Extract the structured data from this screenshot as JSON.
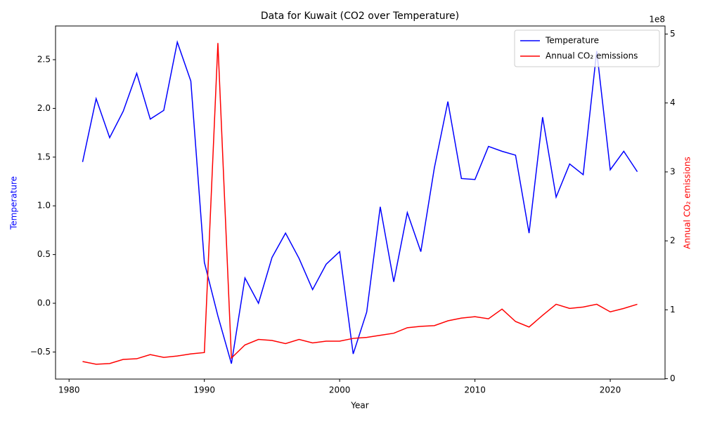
{
  "chart_data": {
    "type": "line",
    "title": "Data for Kuwait (CO2 over Temperature)",
    "xlabel": "Year",
    "ylabel": "Temperature",
    "y2label": "Annual CO₂ emissions",
    "y2_offset_label": "1e8",
    "x": [
      1981,
      1982,
      1983,
      1984,
      1985,
      1986,
      1987,
      1988,
      1989,
      1990,
      1991,
      1992,
      1993,
      1994,
      1995,
      1996,
      1997,
      1998,
      1999,
      2000,
      2001,
      2002,
      2003,
      2004,
      2005,
      2006,
      2007,
      2008,
      2009,
      2010,
      2011,
      2012,
      2013,
      2014,
      2015,
      2016,
      2017,
      2018,
      2019,
      2020,
      2021,
      2022
    ],
    "series": [
      {
        "name": "Temperature",
        "color": "#0000ff",
        "axis": "y",
        "values": [
          1.45,
          2.1,
          1.7,
          1.97,
          2.36,
          1.89,
          1.98,
          2.68,
          2.28,
          0.42,
          -0.13,
          -0.62,
          0.26,
          0.0,
          0.47,
          0.72,
          0.46,
          0.14,
          0.4,
          0.53,
          -0.52,
          -0.09,
          0.99,
          0.22,
          0.93,
          0.53,
          1.39,
          2.07,
          1.28,
          1.27,
          1.61,
          1.56,
          1.52,
          0.72,
          1.91,
          1.09,
          1.43,
          1.32,
          2.59,
          1.37,
          1.56,
          1.35
        ]
      },
      {
        "name": "Annual CO₂ emissions",
        "color": "#ff0000",
        "axis": "y2",
        "values": [
          25000000,
          21000000,
          22000000,
          28000000,
          29000000,
          35000000,
          31000000,
          33000000,
          36000000,
          38000000,
          487000000,
          30000000,
          49000000,
          57000000,
          55500000,
          51000000,
          57000000,
          52000000,
          54500000,
          54500000,
          58500000,
          60000000,
          63000000,
          66000000,
          74000000,
          76000000,
          77000000,
          84000000,
          88000000,
          90000000,
          87000000,
          101000000,
          83000000,
          75000000,
          92000000,
          108000000,
          102000000,
          104000000,
          108000000,
          97000000,
          102000000,
          108000000
        ]
      }
    ],
    "xlim": [
      1979.0,
      2024.05
    ],
    "xticks": [
      1980,
      1990,
      2000,
      2010,
      2020
    ],
    "ylim": [
      -0.778,
      2.846
    ],
    "yticks": [
      {
        "value": -0.5,
        "label": "−0.5"
      },
      {
        "value": 0,
        "label": "0.0"
      },
      0.5,
      {
        "value": 1,
        "label": "1.0"
      },
      1.5,
      {
        "value": 2,
        "label": "2.0"
      },
      2.5
    ],
    "y2lim": [
      -500000,
      511700000
    ],
    "y2ticks": [
      {
        "value": 0,
        "label": "0"
      },
      {
        "value": 100000000,
        "label": "1"
      },
      {
        "value": 200000000,
        "label": "2"
      },
      {
        "value": 300000000,
        "label": "3"
      },
      {
        "value": 400000000,
        "label": "4"
      },
      {
        "value": 500000000,
        "label": "5"
      }
    ],
    "legend": "upper right",
    "grid": false
  }
}
